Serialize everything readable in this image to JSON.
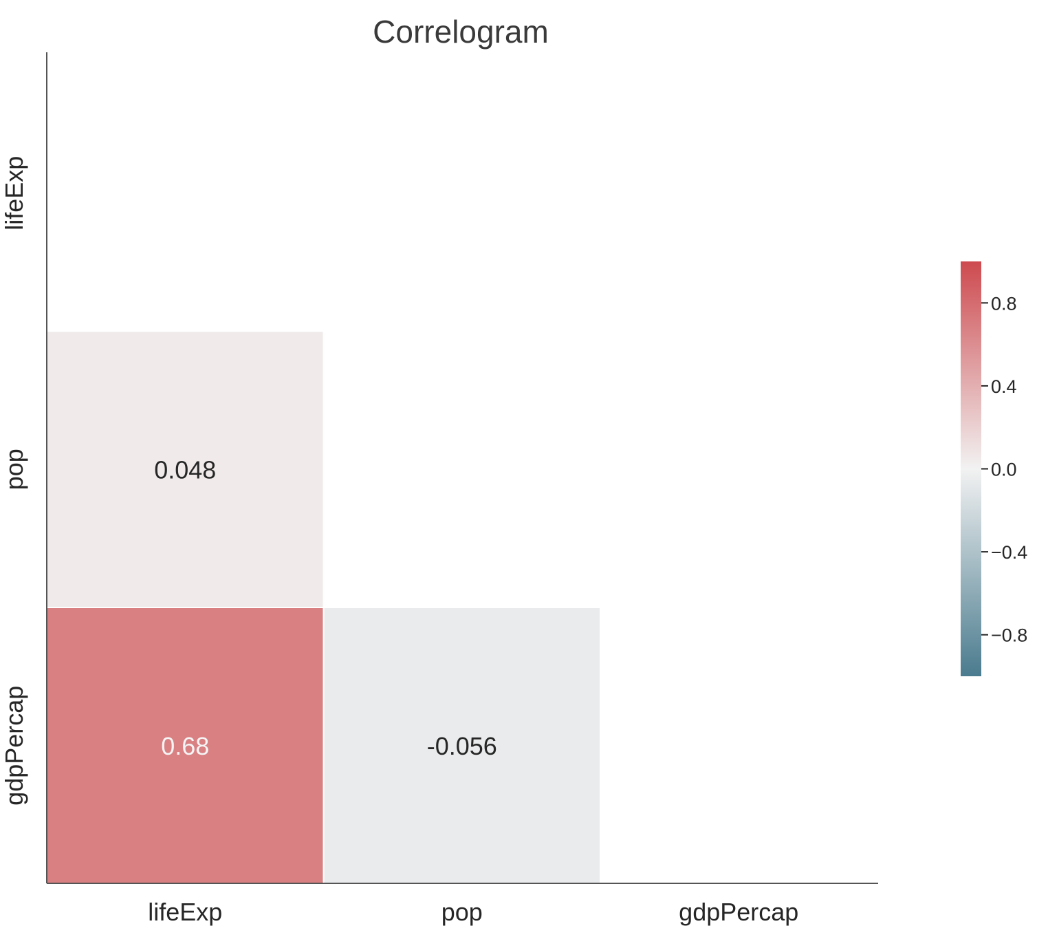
{
  "chart_data": {
    "type": "heatmap",
    "title": "Correlogram",
    "variables": [
      "lifeExp",
      "pop",
      "gdpPercap"
    ],
    "matrix": [
      [
        null,
        null,
        null
      ],
      [
        0.048,
        null,
        null
      ],
      [
        0.68,
        -0.056,
        null
      ]
    ],
    "cell_labels": [
      [
        null,
        null,
        null
      ],
      [
        "0.048",
        null,
        null
      ],
      [
        "0.68",
        "-0.056",
        null
      ]
    ],
    "mask": "upper-triangle-including-diagonal",
    "colorbar": {
      "vmin": -1,
      "vmax": 1,
      "ticks": [
        0.8,
        0.4,
        0.0,
        -0.4,
        -0.8
      ],
      "tick_labels": [
        "0.8",
        "0.4",
        "0.0",
        "−0.4",
        "−0.8"
      ],
      "colors": {
        "negative": "#4a7b8e",
        "center": "#f2f2f2",
        "positive": "#cd4a4f"
      },
      "placement": "right"
    }
  }
}
